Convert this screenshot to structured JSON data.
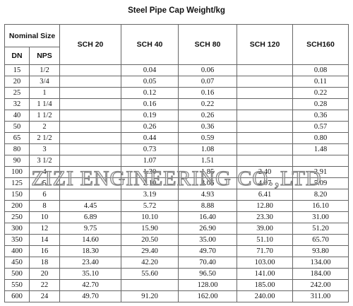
{
  "title": "Steel Pipe Cap Weight/kg",
  "headers": {
    "nominal_size": "Nominal Size",
    "dn": "DN",
    "nps": "NPS",
    "schedules": [
      "SCH 20",
      "SCH 40",
      "SCH 80",
      "SCH 120",
      "SCH160"
    ]
  },
  "rows": [
    [
      "15",
      "1/2",
      "",
      "0.04",
      "0.06",
      "",
      "0.08"
    ],
    [
      "20",
      "3/4",
      "",
      "0.05",
      "0.07",
      "",
      "0.11"
    ],
    [
      "25",
      "1",
      "",
      "0.12",
      "0.16",
      "",
      "0.22"
    ],
    [
      "32",
      "1 1/4",
      "",
      "0.16",
      "0.22",
      "",
      "0.28"
    ],
    [
      "40",
      "1 1/2",
      "",
      "0.19",
      "0.26",
      "",
      "0.36"
    ],
    [
      "50",
      "2",
      "",
      "0.26",
      "0.36",
      "",
      "0.57"
    ],
    [
      "65",
      "2 1/2",
      "",
      "0.44",
      "0.59",
      "",
      "0.80"
    ],
    [
      "80",
      "3",
      "",
      "0.73",
      "1.08",
      "",
      "1.48"
    ],
    [
      "90",
      "3 1/2",
      "",
      "1.07",
      "1.51",
      "",
      ""
    ],
    [
      "100",
      "4",
      "",
      "1.30",
      "1.85",
      "2.40",
      "2.91"
    ],
    [
      "125",
      "5",
      "",
      "2.10",
      "3.06",
      "4.07",
      "5.09"
    ],
    [
      "150",
      "6",
      "",
      "3.19",
      "4.93",
      "6.41",
      "8.20"
    ],
    [
      "200",
      "8",
      "4.45",
      "5.72",
      "8.88",
      "12.80",
      "16.10"
    ],
    [
      "250",
      "10",
      "6.89",
      "10.10",
      "16.40",
      "23.30",
      "31.00"
    ],
    [
      "300",
      "12",
      "9.75",
      "15.90",
      "26.90",
      "39.00",
      "51.20"
    ],
    [
      "350",
      "14",
      "14.60",
      "20.50",
      "35.00",
      "51.10",
      "65.70"
    ],
    [
      "400",
      "16",
      "18.30",
      "29.40",
      "49.70",
      "71.70",
      "93.80"
    ],
    [
      "450",
      "18",
      "23.40",
      "42.20",
      "70.40",
      "103.00",
      "134.00"
    ],
    [
      "500",
      "20",
      "35.10",
      "55.60",
      "96.50",
      "141.00",
      "184.00"
    ],
    [
      "550",
      "22",
      "42.70",
      "",
      "128.00",
      "185.00",
      "242.00"
    ],
    [
      "600",
      "24",
      "49.70",
      "91.20",
      "162.00",
      "240.00",
      "311.00"
    ]
  ],
  "watermark": "ZIZI ENGINEERING CO.,LTD"
}
